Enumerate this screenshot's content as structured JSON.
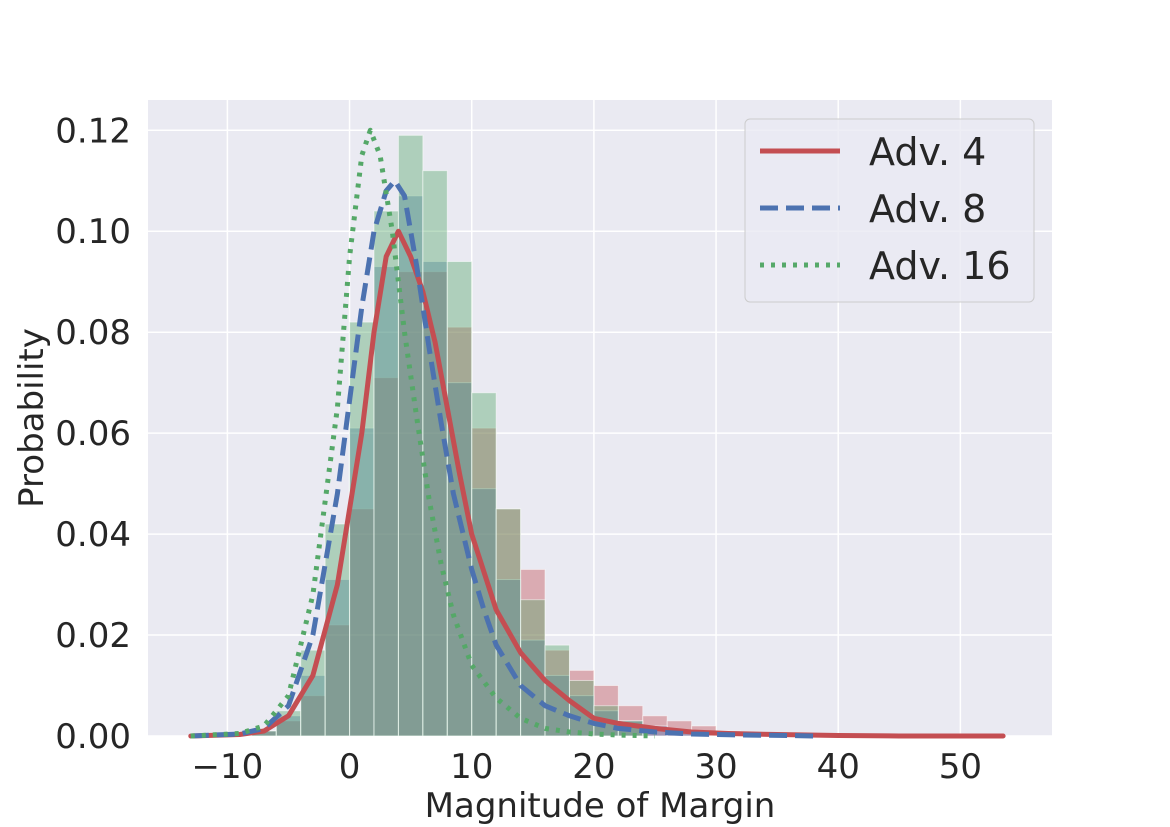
{
  "chart_data": {
    "type": "area",
    "title": "",
    "xlabel": "Magnitude of Margin",
    "ylabel": "Probability",
    "xlim": [
      -16.5,
      57.5
    ],
    "ylim": [
      0,
      0.126
    ],
    "grid": true,
    "legend_position": "top-right",
    "x_ticks": [
      {
        "value": -10,
        "label": "−10"
      },
      {
        "value": 0,
        "label": "0"
      },
      {
        "value": 10,
        "label": "10"
      },
      {
        "value": 20,
        "label": "20"
      },
      {
        "value": 30,
        "label": "30"
      },
      {
        "value": 40,
        "label": "40"
      },
      {
        "value": 50,
        "label": "50"
      }
    ],
    "y_ticks": [
      {
        "value": 0.0,
        "label": "0.00"
      },
      {
        "value": 0.02,
        "label": "0.02"
      },
      {
        "value": 0.04,
        "label": "0.04"
      },
      {
        "value": 0.06,
        "label": "0.06"
      },
      {
        "value": 0.08,
        "label": "0.08"
      },
      {
        "value": 0.1,
        "label": "0.10"
      },
      {
        "value": 0.12,
        "label": "0.12"
      }
    ],
    "bin_width": 2,
    "series": [
      {
        "name": "Adv. 4",
        "color": "#c44e52",
        "line_style": "solid",
        "histogram": {
          "bin_starts": [
            -8,
            -6,
            -4,
            -2,
            0,
            2,
            4,
            6,
            8,
            10,
            12,
            14,
            16,
            18,
            20,
            22,
            24,
            26,
            28,
            30
          ],
          "values": [
            0.001,
            0.003,
            0.008,
            0.022,
            0.045,
            0.071,
            0.092,
            0.092,
            0.081,
            0.061,
            0.045,
            0.033,
            0.017,
            0.013,
            0.01,
            0.006,
            0.004,
            0.003,
            0.002,
            0.001
          ]
        },
        "kde": {
          "x": [
            -13,
            -9,
            -7,
            -5,
            -3,
            -1,
            1,
            2,
            3,
            4,
            5,
            6,
            7,
            8,
            9,
            10,
            12,
            14,
            16,
            18,
            20,
            22,
            25,
            28,
            31,
            35,
            40,
            45,
            50,
            53.5
          ],
          "y": [
            0,
            0.0003,
            0.001,
            0.004,
            0.012,
            0.03,
            0.06,
            0.08,
            0.095,
            0.1,
            0.095,
            0.088,
            0.078,
            0.065,
            0.052,
            0.04,
            0.025,
            0.0165,
            0.011,
            0.007,
            0.0035,
            0.0025,
            0.0015,
            0.0008,
            0.0005,
            0.0003,
            0.0001,
            0,
            0,
            0
          ]
        }
      },
      {
        "name": "Adv. 8",
        "color": "#4c72b0",
        "line_style": "dashed",
        "histogram": {
          "bin_starts": [
            -8,
            -6,
            -4,
            -2,
            0,
            2,
            4,
            6,
            8,
            10,
            12,
            14,
            16,
            18,
            20,
            22,
            24,
            26
          ],
          "values": [
            0.001,
            0.004,
            0.012,
            0.031,
            0.061,
            0.093,
            0.107,
            0.094,
            0.07,
            0.049,
            0.031,
            0.019,
            0.012,
            0.008,
            0.005,
            0.003,
            0.002,
            0.001
          ]
        },
        "kde": {
          "x": [
            -13,
            -9,
            -7,
            -5,
            -3,
            -1,
            1,
            2,
            3,
            3.7,
            4.5,
            5.5,
            6.5,
            7.5,
            8.5,
            10,
            11,
            12,
            14,
            16,
            18,
            20,
            22,
            25,
            28,
            32,
            36,
            38
          ],
          "y": [
            0,
            0.0004,
            0.0015,
            0.006,
            0.02,
            0.048,
            0.085,
            0.1,
            0.108,
            0.11,
            0.107,
            0.093,
            0.077,
            0.062,
            0.048,
            0.033,
            0.025,
            0.018,
            0.01,
            0.006,
            0.004,
            0.0025,
            0.0015,
            0.0008,
            0.0004,
            0.0002,
            0.0001,
            0
          ]
        }
      },
      {
        "name": "Adv. 16",
        "color": "#55a868",
        "line_style": "dotted",
        "histogram": {
          "bin_starts": [
            -8,
            -6,
            -4,
            -2,
            0,
            2,
            4,
            6,
            8,
            10,
            12,
            14,
            16,
            18,
            20,
            22
          ],
          "values": [
            0.001,
            0.005,
            0.017,
            0.042,
            0.082,
            0.104,
            0.119,
            0.112,
            0.094,
            0.068,
            0.045,
            0.027,
            0.018,
            0.011,
            0.006,
            0.003
          ]
        },
        "kde": {
          "x": [
            -13,
            -9,
            -7,
            -5,
            -3,
            -1,
            0,
            1,
            1.7,
            2.5,
            3.5,
            4.5,
            5.5,
            6.5,
            7.5,
            8.5,
            10,
            12,
            14,
            16,
            18,
            20,
            22,
            25
          ],
          "y": [
            0,
            0.0005,
            0.002,
            0.008,
            0.028,
            0.065,
            0.095,
            0.115,
            0.12,
            0.115,
            0.1,
            0.08,
            0.063,
            0.047,
            0.034,
            0.024,
            0.014,
            0.0075,
            0.0035,
            0.0015,
            0.0008,
            0.0004,
            0.0002,
            0
          ]
        }
      }
    ]
  }
}
